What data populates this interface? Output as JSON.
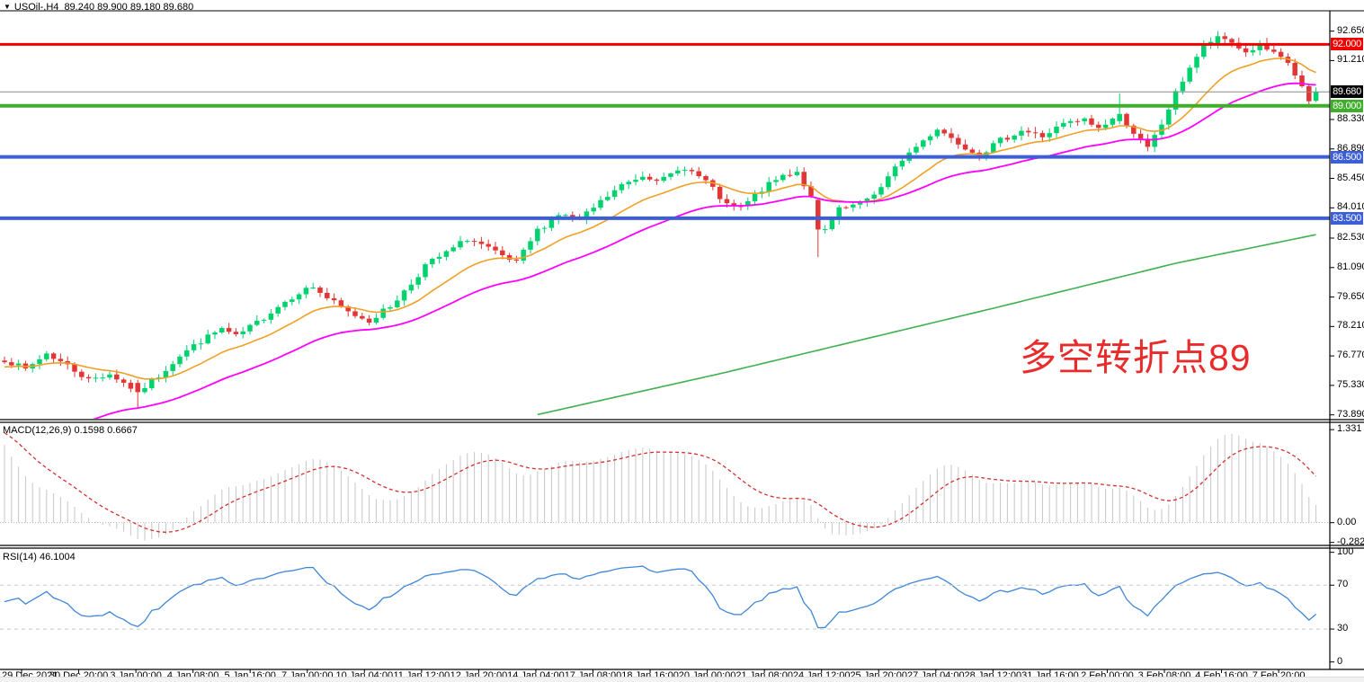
{
  "header": {
    "symbol": "USOil-,H4",
    "ohlc": "89.240 89.900 89.180 89.680"
  },
  "annotation": {
    "text": "多空转折点89",
    "color": "#E82C2C"
  },
  "price_axis": {
    "ticks": [
      "92.650",
      "91.210",
      "88.330",
      "86.890",
      "85.450",
      "84.010",
      "82.530",
      "81.090",
      "79.650",
      "78.210",
      "76.770",
      "75.330",
      "73.890"
    ],
    "badges": [
      {
        "label": "92.000",
        "bg": "#F20000"
      },
      {
        "label": "89.680",
        "bg": "#000000"
      },
      {
        "label": "89.000",
        "bg": "#3FAE2A"
      },
      {
        "label": "86.500",
        "bg": "#3D5FD6"
      },
      {
        "label": "83.500",
        "bg": "#3D5FD6"
      }
    ]
  },
  "time_axis": {
    "labels": [
      "29 Dec 2021",
      "30 Dec 20:00",
      "3 Jan 00:00",
      "4 Jan 08:00",
      "5 Jan 16:00",
      "7 Jan 00:00",
      "10 Jan 04:00",
      "11 Jan 12:00",
      "12 Jan 20:00",
      "14 Jan 04:00",
      "17 Jan 08:00",
      "18 Jan 16:00",
      "20 Jan 00:00",
      "21 Jan 08:00",
      "24 Jan 12:00",
      "25 Jan 20:00",
      "27 Jan 04:00",
      "28 Jan 12:00",
      "31 Jan 16:00",
      "2 Feb 00:00",
      "3 Feb 08:00",
      "4 Feb 16:00",
      "7 Feb 20:00"
    ]
  },
  "chart_data": {
    "type": "candlestick",
    "symbol": "USOil-",
    "timeframe": "H4",
    "last_ohlc": [
      89.24,
      89.9,
      89.18,
      89.68
    ],
    "bars": 188,
    "noise_seed": 7,
    "price_range": [
      73.7,
      93.6
    ],
    "close_anchors": [
      [
        0,
        76.6
      ],
      [
        3,
        76.1
      ],
      [
        6,
        76.9
      ],
      [
        9,
        76.3
      ],
      [
        12,
        75.6
      ],
      [
        15,
        75.9
      ],
      [
        19,
        75.0
      ],
      [
        22,
        75.8
      ],
      [
        25,
        76.8
      ],
      [
        28,
        77.5
      ],
      [
        31,
        78.1
      ],
      [
        33,
        77.7
      ],
      [
        36,
        78.4
      ],
      [
        39,
        79.2
      ],
      [
        42,
        79.9
      ],
      [
        44,
        80.15
      ],
      [
        46,
        79.6
      ],
      [
        49,
        78.9
      ],
      [
        52,
        78.5
      ],
      [
        55,
        79.2
      ],
      [
        58,
        80.3
      ],
      [
        60,
        81.2
      ],
      [
        63,
        81.8
      ],
      [
        66,
        82.5
      ],
      [
        68,
        82.2
      ],
      [
        71,
        81.6
      ],
      [
        73,
        81.3
      ],
      [
        76,
        82.9
      ],
      [
        79,
        83.7
      ],
      [
        82,
        83.4
      ],
      [
        85,
        84.3
      ],
      [
        88,
        85.1
      ],
      [
        91,
        85.6
      ],
      [
        94,
        85.4
      ],
      [
        97,
        86.0
      ],
      [
        100,
        85.3
      ],
      [
        103,
        84.1
      ],
      [
        105,
        84.0
      ],
      [
        108,
        84.9
      ],
      [
        111,
        85.6
      ],
      [
        113,
        85.8
      ],
      [
        115,
        84.5
      ],
      [
        117,
        82.9
      ],
      [
        119,
        83.9
      ],
      [
        122,
        84.2
      ],
      [
        125,
        85.0
      ],
      [
        128,
        86.4
      ],
      [
        131,
        87.3
      ],
      [
        133,
        87.9
      ],
      [
        136,
        87.2
      ],
      [
        139,
        86.6
      ],
      [
        142,
        87.3
      ],
      [
        145,
        87.8
      ],
      [
        148,
        87.5
      ],
      [
        151,
        88.1
      ],
      [
        154,
        88.3
      ],
      [
        156,
        87.9
      ],
      [
        159,
        88.6
      ],
      [
        161,
        87.7
      ],
      [
        163,
        86.9
      ],
      [
        165,
        88.1
      ],
      [
        167,
        89.6
      ],
      [
        169,
        90.9
      ],
      [
        171,
        91.9
      ],
      [
        173,
        92.4
      ],
      [
        175,
        92.1
      ],
      [
        177,
        91.6
      ],
      [
        179,
        91.95
      ],
      [
        181,
        91.5
      ],
      [
        183,
        91.1
      ],
      [
        185,
        89.9
      ],
      [
        186,
        89.1
      ],
      [
        187,
        89.68
      ]
    ],
    "bar_overrides": {
      "19": [
        75.45,
        75.6,
        74.25,
        75.0
      ],
      "116": [
        84.4,
        84.5,
        81.6,
        82.95
      ],
      "159": [
        88.25,
        89.6,
        88.1,
        88.6
      ],
      "173": [
        91.95,
        92.65,
        91.8,
        92.4
      ],
      "187": [
        89.24,
        89.9,
        89.18,
        89.68
      ]
    },
    "candle_colors": {
      "up": "#00D26E",
      "down": "#E23535"
    },
    "hlines": [
      {
        "price": 92.0,
        "color": "#F20000",
        "width": 3
      },
      {
        "price": 89.0,
        "color": "#3FAE2A",
        "width": 4
      },
      {
        "price": 86.5,
        "color": "#3D5FD6",
        "width": 4
      },
      {
        "price": 83.5,
        "color": "#3D5FD6",
        "width": 4
      }
    ],
    "price_line": {
      "price": 89.68,
      "color": "#8C8C8C"
    },
    "moving_averages": [
      {
        "name": "ma-fast-orange",
        "period": 14,
        "seed": 76.2,
        "color": "#F0A125",
        "width": 1.6
      },
      {
        "name": "ma-mid-magenta",
        "period": 34,
        "seed": 70.5,
        "color": "#FF00FF",
        "width": 1.8
      }
    ],
    "ma_long_green": {
      "name": "ma-long-green",
      "color": "#3DB04F",
      "width": 1.6,
      "points": [
        [
          76,
          73.9
        ],
        [
          102,
          75.9
        ],
        [
          141,
          79.1
        ],
        [
          167,
          81.3
        ],
        [
          187,
          82.7
        ]
      ]
    },
    "macd": {
      "label": "MACD(12,26,9) 0.1598 0.6667",
      "fast": 12,
      "slow": 26,
      "signal": 9,
      "values": [
        0.1598,
        0.6667
      ],
      "seed_fast": 77.6,
      "seed_slow": 76.3,
      "seed_signal": 1.33,
      "range": [
        -0.3,
        1.41
      ],
      "ticks": [
        "1.331",
        "0.00",
        "-0.2827"
      ],
      "hist_color": "#C6C6C6",
      "signal_color": "#D43030"
    },
    "rsi": {
      "label": "RSI(14) 46.1004",
      "period": 14,
      "value": 46.1004,
      "range": [
        -6,
        103
      ],
      "ticks": [
        "100",
        "70",
        "30",
        "0"
      ],
      "levels": [
        70,
        30
      ],
      "color": "#3E86D8"
    }
  }
}
